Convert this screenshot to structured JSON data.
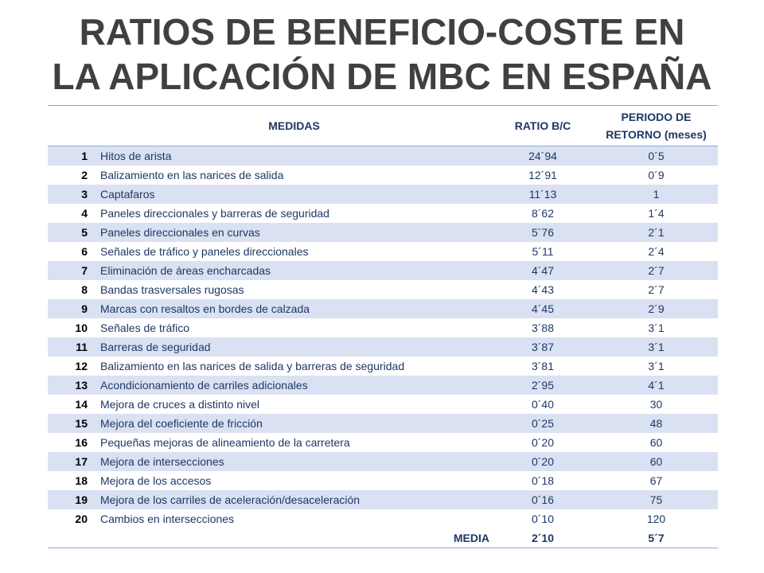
{
  "title_line1": "RATIOS DE BENEFICIO-COSTE EN",
  "title_line2": "LA APLICACIÓN DE MBC EN ESPAÑA",
  "headers": {
    "medidas": "MEDIDAS",
    "ratio": "RATIO B/C",
    "period_line1": "PERIODO DE",
    "period_line2": "RETORNO (meses)"
  },
  "rows": [
    {
      "num": "1",
      "name": "Hitos de arista",
      "ratio": "24´94",
      "period": "0´5"
    },
    {
      "num": "2",
      "name": "Balizamiento en las narices de salida",
      "ratio": "12´91",
      "period": "0´9"
    },
    {
      "num": "3",
      "name": "Captafaros",
      "ratio": "11´13",
      "period": "1"
    },
    {
      "num": "4",
      "name": "Paneles direccionales y barreras de seguridad",
      "ratio": "8´62",
      "period": "1´4"
    },
    {
      "num": "5",
      "name": "Paneles direccionales en curvas",
      "ratio": "5´76",
      "period": "2´1"
    },
    {
      "num": "6",
      "name": "Señales de tráfico y paneles direccionales",
      "ratio": "5´11",
      "period": "2´4"
    },
    {
      "num": "7",
      "name": "Eliminación de áreas encharcadas",
      "ratio": "4´47",
      "period": "2´7"
    },
    {
      "num": "8",
      "name": "Bandas trasversales rugosas",
      "ratio": "4´43",
      "period": "2´7"
    },
    {
      "num": "9",
      "name": "Marcas con resaltos en bordes de calzada",
      "ratio": "4´45",
      "period": "2´9"
    },
    {
      "num": "10",
      "name": "Señales de tráfico",
      "ratio": "3´88",
      "period": "3´1"
    },
    {
      "num": "11",
      "name": "Barreras de seguridad",
      "ratio": "3´87",
      "period": "3´1"
    },
    {
      "num": "12",
      "name": "Balizamiento en las narices de salida y barreras de seguridad",
      "ratio": "3´81",
      "period": "3´1"
    },
    {
      "num": "13",
      "name": "Acondicionamiento de carriles adicionales",
      "ratio": "2´95",
      "period": "4´1"
    },
    {
      "num": "14",
      "name": "Mejora de cruces a distinto nivel",
      "ratio": "0´40",
      "period": "30"
    },
    {
      "num": "15",
      "name": "Mejora del coeficiente de fricción",
      "ratio": "0´25",
      "period": "48"
    },
    {
      "num": "16",
      "name": "Pequeñas mejoras de alineamiento de la carretera",
      "ratio": "0´20",
      "period": "60"
    },
    {
      "num": "17",
      "name": "Mejora de intersecciones",
      "ratio": "0´20",
      "period": "60"
    },
    {
      "num": "18",
      "name": "Mejora de los accesos",
      "ratio": "0´18",
      "period": "67"
    },
    {
      "num": "19",
      "name": "Mejora de los carriles de aceleración/desaceleración",
      "ratio": "0´16",
      "period": "75"
    },
    {
      "num": "20",
      "name": "Cambios en intersecciones",
      "ratio": "0´10",
      "period": "120"
    }
  ],
  "footer": {
    "label": "MEDIA",
    "ratio": "2´10",
    "period": "5´7"
  }
}
